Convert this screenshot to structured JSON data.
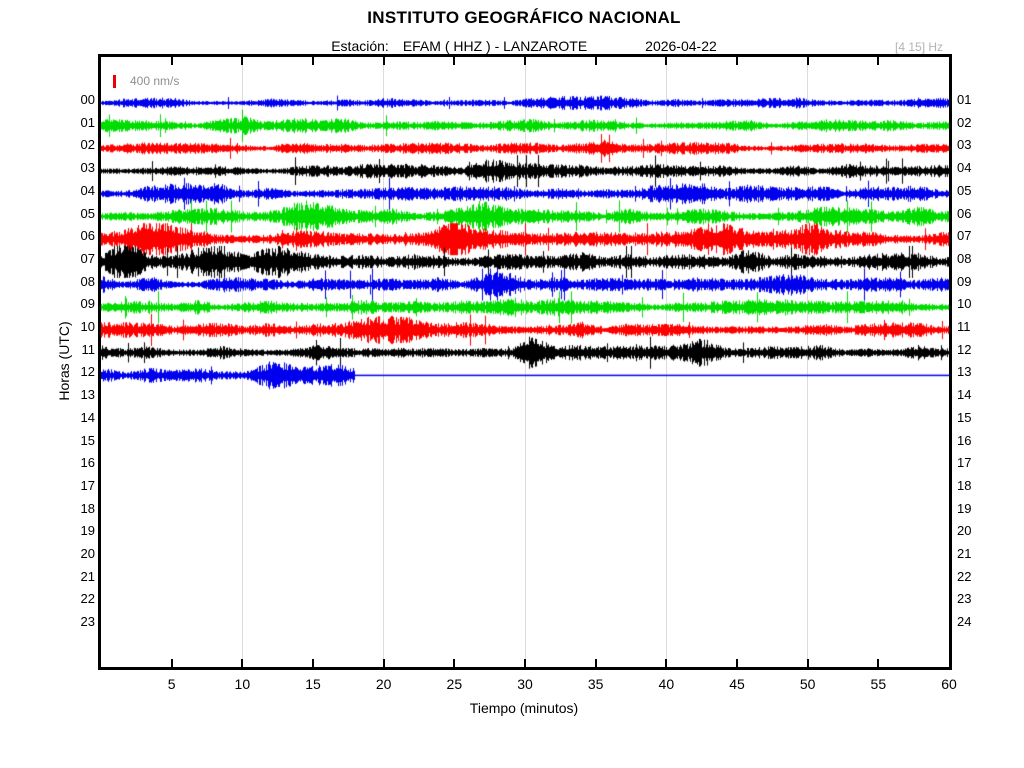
{
  "header": {
    "title": "INSTITUTO GEOGRÁFICO NACIONAL",
    "station_label": "Estación:",
    "station_value": "EFAM ( HHZ ) - LANZAROTE",
    "date": "2026-04-22",
    "filter_band": "[4 15] Hz"
  },
  "scale_marker": {
    "label": "400 nm/s",
    "color": "#ee0000"
  },
  "axes": {
    "y_label": "Horas (UTC)",
    "x_label": "Tiempo (minutos)",
    "x_range": [
      0,
      60
    ],
    "x_tick_step": 5,
    "x_ticks": [
      5,
      10,
      15,
      20,
      25,
      30,
      35,
      40,
      45,
      50,
      55,
      60
    ],
    "x_gridlines": [
      10,
      20,
      30,
      40,
      50
    ],
    "left_hour_labels": [
      "00",
      "01",
      "02",
      "03",
      "04",
      "05",
      "06",
      "07",
      "08",
      "09",
      "10",
      "11",
      "12",
      "13",
      "14",
      "15",
      "16",
      "17",
      "18",
      "19",
      "20",
      "21",
      "22",
      "23"
    ],
    "right_hour_labels": [
      "01",
      "02",
      "03",
      "04",
      "05",
      "06",
      "07",
      "08",
      "09",
      "10",
      "11",
      "12",
      "13",
      "14",
      "15",
      "16",
      "17",
      "18",
      "19",
      "20",
      "21",
      "22",
      "23",
      "24"
    ]
  },
  "chart_data": {
    "type": "line",
    "subtype": "helicorder-seismogram",
    "title": "INSTITUTO GEOGRÁFICO NACIONAL",
    "xlabel": "Tiempo (minutos)",
    "ylabel": "Horas (UTC)",
    "xlim": [
      0,
      60
    ],
    "minutes_per_row": 60,
    "amplitude_scale": "400 nm/s",
    "frequency_band_hz": "[4 15]",
    "grid": "vertical lines every 10 minutes",
    "color_cycle": [
      "#0000ee",
      "#00dd00",
      "#ff0000",
      "#000000"
    ],
    "rows": [
      {
        "hour": "00",
        "right_label": "01",
        "color": "#0000ee",
        "base_amplitude": 2.4,
        "end_minute": 60,
        "bursts": [
          {
            "minute": 34,
            "boost": 0.7,
            "width": 1.5
          }
        ]
      },
      {
        "hour": "01",
        "right_label": "02",
        "color": "#00dd00",
        "base_amplitude": 3.0,
        "end_minute": 60,
        "bursts": [
          {
            "minute": 14,
            "boost": 0.7,
            "width": 3
          }
        ]
      },
      {
        "hour": "02",
        "right_label": "03",
        "color": "#ff0000",
        "base_amplitude": 2.8,
        "end_minute": 60,
        "bursts": [
          {
            "minute": 34,
            "boost": 0.8,
            "width": 2
          }
        ]
      },
      {
        "hour": "03",
        "right_label": "04",
        "color": "#000000",
        "base_amplitude": 3.2,
        "end_minute": 60,
        "bursts": [
          {
            "minute": 27,
            "boost": 0.7,
            "width": 2.5
          }
        ]
      },
      {
        "hour": "04",
        "right_label": "05",
        "color": "#0000ee",
        "base_amplitude": 4.2,
        "end_minute": 60,
        "bursts": [
          {
            "minute": 6,
            "boost": 0.8,
            "width": 2
          },
          {
            "minute": 43,
            "boost": 0.7,
            "width": 2
          }
        ]
      },
      {
        "hour": "05",
        "right_label": "06",
        "color": "#00dd00",
        "base_amplitude": 4.4,
        "end_minute": 60,
        "bursts": [
          {
            "minute": 15,
            "boost": 1.3,
            "width": 1.5
          },
          {
            "minute": 26,
            "boost": 0.8,
            "width": 1.5
          }
        ]
      },
      {
        "hour": "06",
        "right_label": "07",
        "color": "#ff0000",
        "base_amplitude": 4.6,
        "end_minute": 60,
        "bursts": [
          {
            "minute": 4,
            "boost": 1.5,
            "width": 1.2
          },
          {
            "minute": 25,
            "boost": 2.0,
            "width": 0.7
          },
          {
            "minute": 44,
            "boost": 1.3,
            "width": 1
          },
          {
            "minute": 50,
            "boost": 1.8,
            "width": 0.8
          }
        ]
      },
      {
        "hour": "07",
        "right_label": "08",
        "color": "#000000",
        "base_amplitude": 4.2,
        "end_minute": 60,
        "bursts": [
          {
            "minute": 1.5,
            "boost": 1.7,
            "width": 1
          },
          {
            "minute": 10,
            "boost": 1.1,
            "width": 2.5
          },
          {
            "minute": 46,
            "boost": 0.9,
            "width": 1.5
          }
        ]
      },
      {
        "hour": "08",
        "right_label": "09",
        "color": "#0000ee",
        "base_amplitude": 4.0,
        "end_minute": 60,
        "bursts": [
          {
            "minute": 28,
            "boost": 1.2,
            "width": 1.2
          },
          {
            "minute": 47,
            "boost": 0.9,
            "width": 1.5
          }
        ]
      },
      {
        "hour": "09",
        "right_label": "10",
        "color": "#00dd00",
        "base_amplitude": 3.6,
        "end_minute": 60,
        "bursts": [
          {
            "minute": 30,
            "boost": 0.8,
            "width": 2
          }
        ]
      },
      {
        "hour": "10",
        "right_label": "11",
        "color": "#ff0000",
        "base_amplitude": 3.8,
        "end_minute": 60,
        "bursts": [
          {
            "minute": 20,
            "boost": 0.7,
            "width": 2
          }
        ]
      },
      {
        "hour": "11",
        "right_label": "12",
        "color": "#000000",
        "base_amplitude": 3.6,
        "end_minute": 60,
        "bursts": [
          {
            "minute": 31,
            "boost": 1.0,
            "width": 1.5
          },
          {
            "minute": 43,
            "boost": 1.1,
            "width": 1
          }
        ]
      },
      {
        "hour": "12",
        "right_label": "13",
        "color": "#0000ee",
        "base_amplitude": 4.0,
        "end_minute": 18,
        "bursts": [
          {
            "minute": 12,
            "boost": 1.3,
            "width": 1
          },
          {
            "minute": 15.5,
            "boost": 1.1,
            "width": 0.8
          }
        ]
      }
    ],
    "empty_hours": [
      "13",
      "14",
      "15",
      "16",
      "17",
      "18",
      "19",
      "20",
      "21",
      "22",
      "23"
    ]
  }
}
